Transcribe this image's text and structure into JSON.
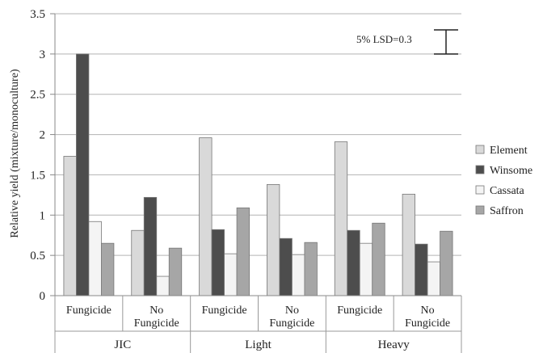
{
  "chart_data": {
    "type": "bar",
    "ylabel": "Relative yield (mixture/monoculture)",
    "ylim": [
      0,
      3.5
    ],
    "yticks": [
      "0",
      "0.5",
      "1",
      "1.5",
      "2",
      "2.5",
      "3",
      "3.5"
    ],
    "grid": true,
    "legend_position": "right",
    "groups": [
      {
        "label": "JIC",
        "categories": [
          "Fungicide",
          "No Fungicide"
        ]
      },
      {
        "label": "Light",
        "categories": [
          "Fungicide",
          "No Fungicide"
        ]
      },
      {
        "label": "Heavy",
        "categories": [
          "Fungicide",
          "No Fungicide"
        ]
      }
    ],
    "series": [
      {
        "name": "Element",
        "color": "#d9d9d9",
        "values": [
          1.73,
          0.81,
          1.96,
          1.38,
          1.91,
          1.26
        ]
      },
      {
        "name": "Winsome",
        "color": "#4d4d4d",
        "values": [
          3.0,
          1.22,
          0.82,
          0.71,
          0.81,
          0.64
        ]
      },
      {
        "name": "Cassata",
        "color": "#f4f4f4",
        "values": [
          0.92,
          0.24,
          0.52,
          0.51,
          0.65,
          0.42
        ]
      },
      {
        "name": "Saffron",
        "color": "#a6a6a6",
        "values": [
          0.65,
          0.59,
          1.09,
          0.66,
          0.9,
          0.8
        ]
      }
    ],
    "annotation": {
      "text": "5% LSD=0.3",
      "value": 0.3
    }
  }
}
